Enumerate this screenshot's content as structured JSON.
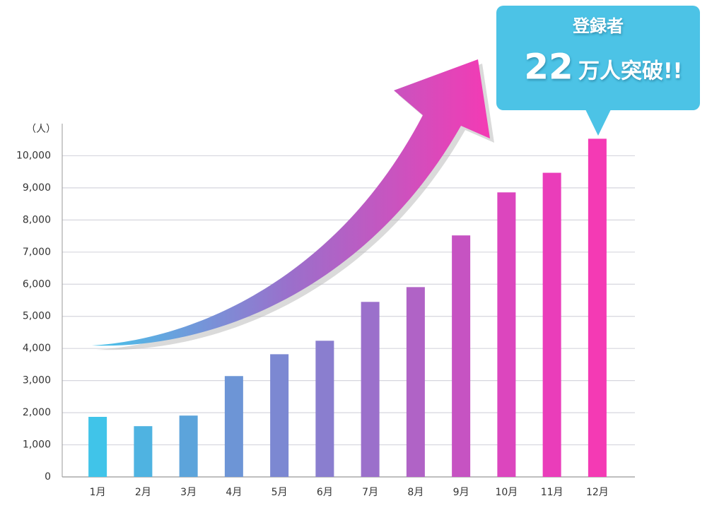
{
  "chart_data": {
    "type": "bar",
    "y_axis_label": "（人）",
    "categories": [
      "1月",
      "2月",
      "3月",
      "4月",
      "5月",
      "6月",
      "7月",
      "8月",
      "9月",
      "10月",
      "11月",
      "12月"
    ],
    "values": [
      1870,
      1580,
      1910,
      3140,
      3820,
      4240,
      5450,
      5910,
      7520,
      8860,
      9470,
      10530
    ],
    "colors": [
      "#40c4e9",
      "#4fb3e1",
      "#5ca4db",
      "#6d95d6",
      "#7c88d2",
      "#8a7ecf",
      "#9b70cb",
      "#b063c6",
      "#c653c2",
      "#dc46be",
      "#ea3dba",
      "#f43ab4"
    ],
    "ylim": [
      0,
      11000
    ],
    "yticks": [
      0,
      {
        "value": 1000,
        "label": "1,000"
      },
      {
        "value": 2000,
        "label": "2,000"
      },
      {
        "value": 3000,
        "label": "3,000"
      },
      {
        "value": 4000,
        "label": "4,000"
      },
      {
        "value": 5000,
        "label": "5,000"
      },
      {
        "value": 6000,
        "label": "6,000"
      },
      {
        "value": 7000,
        "label": "7,000"
      },
      {
        "value": 8000,
        "label": "8,000"
      },
      {
        "value": 9000,
        "label": "9,000"
      },
      {
        "value": 10000,
        "label": "10,000"
      }
    ],
    "grid": true,
    "callout": {
      "heading": "登録者",
      "number": "22",
      "suffix": "万人突破!!"
    }
  }
}
